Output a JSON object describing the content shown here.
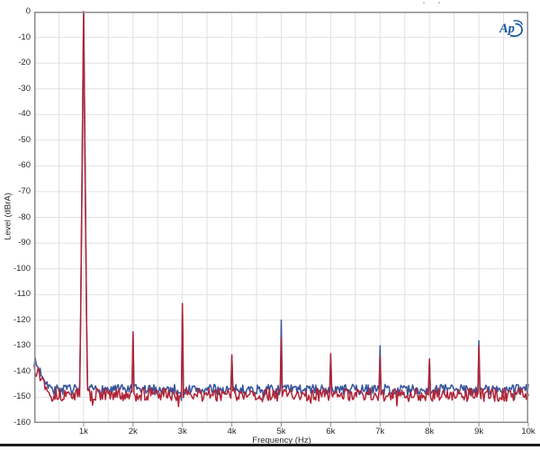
{
  "page": {
    "background": "#ffffff",
    "bottom_bar_color": "#1c1c1c"
  },
  "logo": {
    "text": "Ap",
    "color": "#1456a0"
  },
  "chart_data": {
    "type": "line",
    "xlabel": "Frequency (Hz)",
    "ylabel": "Level (dBrA)",
    "xlim": [
      0,
      10000
    ],
    "ylim": [
      -160,
      0
    ],
    "grid": true,
    "grid_color": "#e1e1e1",
    "frame_color": "#8c8c8c",
    "minor_grid_hz": 500,
    "major_grid_db": 10,
    "x_ticks": [
      {
        "f": 1000,
        "label": "1k"
      },
      {
        "f": 2000,
        "label": "2k"
      },
      {
        "f": 3000,
        "label": "3k"
      },
      {
        "f": 4000,
        "label": "4k"
      },
      {
        "f": 5000,
        "label": "5k"
      },
      {
        "f": 6000,
        "label": "6k"
      },
      {
        "f": 7000,
        "label": "7k"
      },
      {
        "f": 8000,
        "label": "8k"
      },
      {
        "f": 9000,
        "label": "9k"
      },
      {
        "f": 10000,
        "label": "10k"
      }
    ],
    "y_ticks": [
      {
        "db": 0,
        "label": "0"
      },
      {
        "db": -10,
        "label": "-10"
      },
      {
        "db": -20,
        "label": "-20"
      },
      {
        "db": -30,
        "label": "-30"
      },
      {
        "db": -40,
        "label": "-40"
      },
      {
        "db": -50,
        "label": "-50"
      },
      {
        "db": -60,
        "label": "-60"
      },
      {
        "db": -70,
        "label": "-70"
      },
      {
        "db": -80,
        "label": "-80"
      },
      {
        "db": -90,
        "label": "-90"
      },
      {
        "db": -100,
        "label": "-100"
      },
      {
        "db": -110,
        "label": "-110"
      },
      {
        "db": -120,
        "label": "-120"
      },
      {
        "db": -130,
        "label": "-130"
      },
      {
        "db": -140,
        "label": "-140"
      },
      {
        "db": -150,
        "label": "-150"
      },
      {
        "db": -160,
        "label": "-160"
      }
    ],
    "series": [
      {
        "name": "blue-trace",
        "color": "#37549b",
        "noise_floor_db": -147,
        "jitter_db": 2.0,
        "seed": 7,
        "harmonics": [
          {
            "freq": 1000,
            "level_db": 0
          },
          {
            "freq": 2000,
            "level_db": -125
          },
          {
            "freq": 3000,
            "level_db": -114
          },
          {
            "freq": 4000,
            "level_db": -134
          },
          {
            "freq": 5000,
            "level_db": -120
          },
          {
            "freq": 6000,
            "level_db": -133.5
          },
          {
            "freq": 7000,
            "level_db": -130
          },
          {
            "freq": 8000,
            "level_db": -135.5
          },
          {
            "freq": 9000,
            "level_db": -128
          }
        ]
      },
      {
        "name": "red-trace",
        "color": "#b02437",
        "noise_floor_db": -149,
        "jitter_db": 2.6,
        "seed": 13,
        "harmonics": [
          {
            "freq": 1000,
            "level_db": 0
          },
          {
            "freq": 2000,
            "level_db": -124.5
          },
          {
            "freq": 3000,
            "level_db": -113.5
          },
          {
            "freq": 4000,
            "level_db": -133.5
          },
          {
            "freq": 5000,
            "level_db": -127
          },
          {
            "freq": 6000,
            "level_db": -133
          },
          {
            "freq": 7000,
            "level_db": -134
          },
          {
            "freq": 8000,
            "level_db": -135
          },
          {
            "freq": 9000,
            "level_db": -130
          }
        ]
      }
    ],
    "spike_slope_db_per_hz": 2.0,
    "low_freq_rise": {
      "below_hz": 350,
      "rise_db": 11
    },
    "sample_step_hz": 20
  }
}
